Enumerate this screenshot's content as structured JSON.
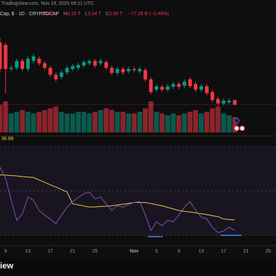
{
  "header": {
    "source": "TradingView.com, Nov 19, 2025 06:11 UTC",
    "symbol": "Cap, $ · 1D · CRYPTOCAP",
    "ohlc": [
      {
        "label": "O",
        "value": "3.14 T"
      },
      {
        "label": "H",
        "value": "3.15 T"
      },
      {
        "label": "L",
        "value": "3.04 T"
      },
      {
        "label": "C",
        "value": "3.06 T"
      }
    ],
    "change": "−77.26 B (−2.46%)"
  },
  "chart_data": {
    "type": "candlestick",
    "categories": [
      null,
      "9",
      null,
      null,
      null,
      "13",
      null,
      null,
      null,
      "17",
      null,
      null,
      null,
      "21",
      null,
      null,
      null,
      "25",
      null,
      null,
      null,
      null,
      null,
      null,
      "Nov",
      null,
      null,
      null,
      "5",
      null,
      null,
      null,
      "9",
      null,
      null,
      null,
      "13",
      null,
      null,
      null,
      "17",
      null,
      null,
      null,
      "21",
      null,
      null,
      null,
      "25"
    ],
    "open": [
      4.14,
      4.1,
      3.68,
      3.7,
      3.82,
      3.68,
      3.82,
      3.86,
      3.78,
      3.7,
      3.58,
      3.54,
      3.62,
      3.68,
      3.7,
      3.74,
      3.78,
      3.82,
      3.78,
      3.8,
      3.7,
      3.61,
      3.68,
      3.64,
      3.68,
      3.64,
      3.66,
      3.5,
      3.32,
      3.37,
      3.32,
      3.37,
      3.42,
      3.39,
      3.5,
      3.42,
      3.32,
      3.38,
      3.28,
      3.16,
      3.08,
      3.1,
      3.14,
      null,
      null,
      null,
      null,
      null,
      null
    ],
    "high": [
      4.22,
      4.14,
      3.74,
      3.86,
      3.86,
      3.9,
      3.94,
      3.9,
      3.82,
      3.74,
      3.62,
      3.66,
      3.74,
      3.77,
      3.79,
      3.84,
      3.86,
      3.86,
      3.86,
      3.84,
      3.74,
      3.72,
      3.72,
      3.72,
      3.72,
      3.72,
      3.7,
      3.54,
      3.42,
      3.41,
      3.42,
      3.46,
      3.46,
      3.5,
      3.54,
      3.46,
      3.42,
      3.42,
      3.32,
      3.2,
      3.17,
      3.17,
      3.15,
      null,
      null,
      null,
      null,
      null,
      null
    ],
    "low": [
      3.62,
      3.26,
      3.64,
      3.66,
      3.64,
      3.64,
      3.78,
      3.74,
      3.66,
      3.54,
      3.46,
      3.5,
      3.58,
      3.64,
      3.66,
      3.7,
      3.74,
      3.7,
      3.74,
      3.66,
      3.57,
      3.57,
      3.58,
      3.6,
      3.62,
      3.6,
      3.46,
      3.24,
      3.28,
      3.28,
      3.28,
      3.33,
      3.33,
      3.35,
      3.34,
      3.28,
      3.28,
      3.22,
      3.1,
      3.04,
      3.04,
      3.06,
      3.04,
      null,
      null,
      null,
      null,
      null,
      null
    ],
    "close": [
      3.68,
      3.68,
      3.7,
      3.82,
      3.68,
      3.86,
      3.9,
      3.78,
      3.7,
      3.58,
      3.5,
      3.62,
      3.7,
      3.73,
      3.75,
      3.8,
      3.82,
      3.74,
      3.82,
      3.7,
      3.61,
      3.68,
      3.62,
      3.68,
      3.66,
      3.68,
      3.5,
      3.28,
      3.38,
      3.32,
      3.38,
      3.42,
      3.37,
      3.46,
      3.38,
      3.32,
      3.38,
      3.26,
      3.14,
      3.08,
      3.13,
      3.13,
      3.06,
      null,
      null,
      null,
      null,
      null,
      null
    ],
    "ylim": [
      2.9,
      4.7
    ],
    "up_color": "#089981",
    "down_color": "#f23645",
    "volume": {
      "values": [
        80,
        90,
        55,
        60,
        65,
        60,
        55,
        60,
        65,
        70,
        75,
        60,
        55,
        55,
        60,
        60,
        55,
        60,
        65,
        70,
        65,
        60,
        60,
        55,
        55,
        60,
        70,
        90,
        60,
        55,
        50,
        55,
        50,
        55,
        60,
        65,
        55,
        60,
        70,
        75,
        55,
        50,
        45,
        null,
        null,
        null,
        null,
        null,
        null
      ],
      "ylim": [
        0,
        120
      ]
    },
    "rsi": {
      "values": [
        60.9,
        55.8,
        45.8,
        36.7,
        39.7,
        47.3,
        45.8,
        41.2,
        39.1,
        37.3,
        35.2,
        39.1,
        42.7,
        45.2,
        47.0,
        48.8,
        49.4,
        46.4,
        47.3,
        44.2,
        41.2,
        43.3,
        42.7,
        43.9,
        44.8,
        45.2,
        39.1,
        32.1,
        36.1,
        34.2,
        36.7,
        36.1,
        39.1,
        42.7,
        45.2,
        41.2,
        38.2,
        37.3,
        33.6,
        31.2,
        31.8,
        33.6,
        32.1,
        null,
        null,
        null,
        null,
        null,
        null
      ],
      "ma": [
        57.3,
        57.2,
        57.0,
        56.8,
        56.5,
        56.3,
        56.1,
        55.0,
        53.9,
        52.8,
        51.8,
        50.7,
        49.5,
        44.2,
        43.7,
        43.2,
        42.7,
        42.8,
        43.0,
        43.1,
        43.3,
        43.7,
        44.0,
        44.4,
        44.8,
        44.8,
        44.8,
        44.3,
        43.8,
        43.3,
        42.6,
        41.9,
        41.2,
        40.8,
        40.5,
        40.1,
        39.7,
        39.3,
        38.8,
        38.4,
        37.3,
        37.1,
        36.89,
        null,
        null,
        null,
        null,
        null,
        null
      ],
      "ylim": [
        24,
        74
      ],
      "levels": [
        70,
        50,
        30
      ],
      "color": "#7e57c2",
      "ma_color": "#f7c948"
    }
  },
  "footer": {
    "logo": "iew"
  }
}
